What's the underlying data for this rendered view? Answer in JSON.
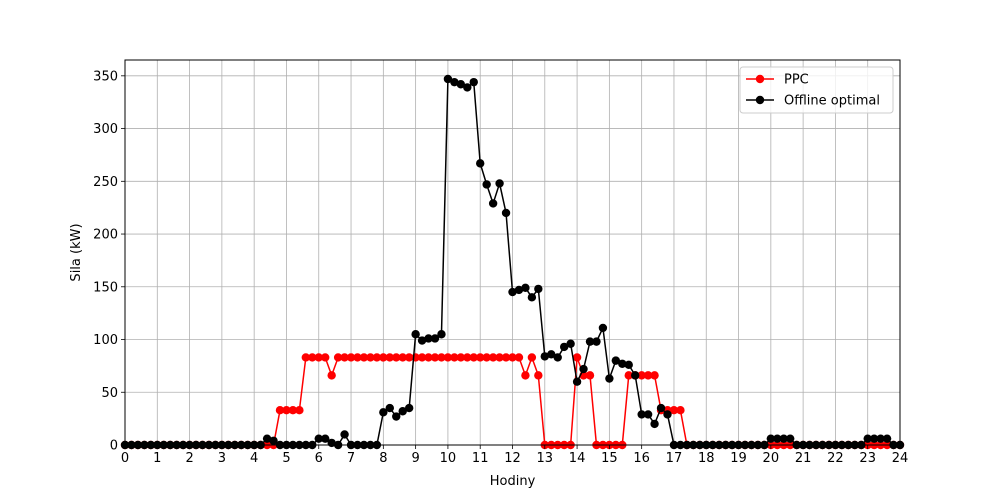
{
  "chart_data": {
    "type": "line",
    "title": "",
    "xlabel": "Hodiny",
    "ylabel": "Sila (kW)",
    "xlim": [
      0,
      24
    ],
    "ylim": [
      0,
      365
    ],
    "grid": true,
    "legend_position": "top-right",
    "x_ticks": [
      0,
      1,
      2,
      3,
      4,
      5,
      6,
      7,
      8,
      9,
      10,
      11,
      12,
      13,
      14,
      15,
      16,
      17,
      18,
      19,
      20,
      21,
      22,
      23,
      24
    ],
    "y_ticks": [
      0,
      50,
      100,
      150,
      200,
      250,
      300,
      350
    ],
    "x_tick_labels": [
      "0",
      "1",
      "2",
      "3",
      "4",
      "5",
      "6",
      "7",
      "8",
      "9",
      "10",
      "11",
      "12",
      "13",
      "14",
      "15",
      "16",
      "17",
      "18",
      "19",
      "20",
      "21",
      "22",
      "23",
      "24"
    ],
    "y_tick_labels": [
      "0",
      "50",
      "100",
      "150",
      "200",
      "250",
      "300",
      "350"
    ],
    "x": [
      0,
      0.2,
      0.4,
      0.6,
      0.8,
      1,
      1.2,
      1.4,
      1.6,
      1.8,
      2,
      2.2,
      2.4,
      2.6,
      2.8,
      3,
      3.2,
      3.4,
      3.6,
      3.8,
      4,
      4.2,
      4.4,
      4.6,
      4.8,
      5,
      5.2,
      5.4,
      5.6,
      5.8,
      6,
      6.2,
      6.4,
      6.6,
      6.8,
      7,
      7.2,
      7.4,
      7.6,
      7.8,
      8,
      8.2,
      8.4,
      8.6,
      8.8,
      9,
      9.2,
      9.4,
      9.6,
      9.8,
      10,
      10.2,
      10.4,
      10.6,
      10.8,
      11,
      11.2,
      11.4,
      11.6,
      11.8,
      12,
      12.2,
      12.4,
      12.6,
      12.8,
      13,
      13.2,
      13.4,
      13.6,
      13.8,
      14,
      14.2,
      14.4,
      14.6,
      14.8,
      15,
      15.2,
      15.4,
      15.6,
      15.8,
      16,
      16.2,
      16.4,
      16.6,
      16.8,
      17,
      17.2,
      17.4,
      17.6,
      17.8,
      18,
      18.2,
      18.4,
      18.6,
      18.8,
      19,
      19.2,
      19.4,
      19.6,
      19.8,
      20,
      20.2,
      20.4,
      20.6,
      20.8,
      21,
      21.2,
      21.4,
      21.6,
      21.8,
      22,
      22.2,
      22.4,
      22.6,
      22.8,
      23,
      23.2,
      23.4,
      23.6,
      23.8,
      24
    ],
    "series": [
      {
        "name": "PPC",
        "color": "#ff0000",
        "values": [
          0,
          0,
          0,
          0,
          0,
          0,
          0,
          0,
          0,
          0,
          0,
          0,
          0,
          0,
          0,
          0,
          0,
          0,
          0,
          0,
          0,
          0,
          0,
          0,
          33,
          33,
          33,
          33,
          83,
          83,
          83,
          83,
          66,
          83,
          83,
          83,
          83,
          83,
          83,
          83,
          83,
          83,
          83,
          83,
          83,
          83,
          83,
          83,
          83,
          83,
          83,
          83,
          83,
          83,
          83,
          83,
          83,
          83,
          83,
          83,
          83,
          83,
          66,
          83,
          66,
          0,
          0,
          0,
          0,
          0,
          83,
          66,
          66,
          0,
          0,
          0,
          0,
          0,
          66,
          66,
          66,
          66,
          66,
          33,
          33,
          33,
          33,
          0,
          0,
          0,
          0,
          0,
          0,
          0,
          0,
          0,
          0,
          0,
          0,
          0,
          0,
          0,
          0,
          0,
          0,
          0,
          0,
          0,
          0,
          0,
          0,
          0,
          0,
          0,
          0,
          0,
          0,
          0,
          0,
          0,
          0
        ]
      },
      {
        "name": "Offline optimal",
        "color": "#000000",
        "values": [
          0,
          0,
          0,
          0,
          0,
          0,
          0,
          0,
          0,
          0,
          0,
          0,
          0,
          0,
          0,
          0,
          0,
          0,
          0,
          0,
          0,
          0,
          6,
          4,
          0,
          0,
          0,
          0,
          0,
          0,
          6,
          6,
          2,
          0,
          10,
          0,
          0,
          0,
          0,
          0,
          31,
          35,
          27,
          32,
          35,
          105,
          99,
          101,
          101,
          105,
          347,
          344,
          342,
          339,
          344,
          267,
          247,
          229,
          248,
          220,
          145,
          147,
          149,
          140,
          148,
          84,
          86,
          83,
          93,
          96,
          60,
          72,
          98,
          98,
          111,
          63,
          80,
          77,
          76,
          66,
          29,
          29,
          20,
          35,
          29,
          0,
          0,
          0,
          0,
          0,
          0,
          0,
          0,
          0,
          0,
          0,
          0,
          0,
          0,
          0,
          6,
          6,
          6,
          6,
          0,
          0,
          0,
          0,
          0,
          0,
          0,
          0,
          0,
          0,
          0,
          6,
          6,
          6,
          6,
          0,
          0
        ]
      }
    ]
  }
}
